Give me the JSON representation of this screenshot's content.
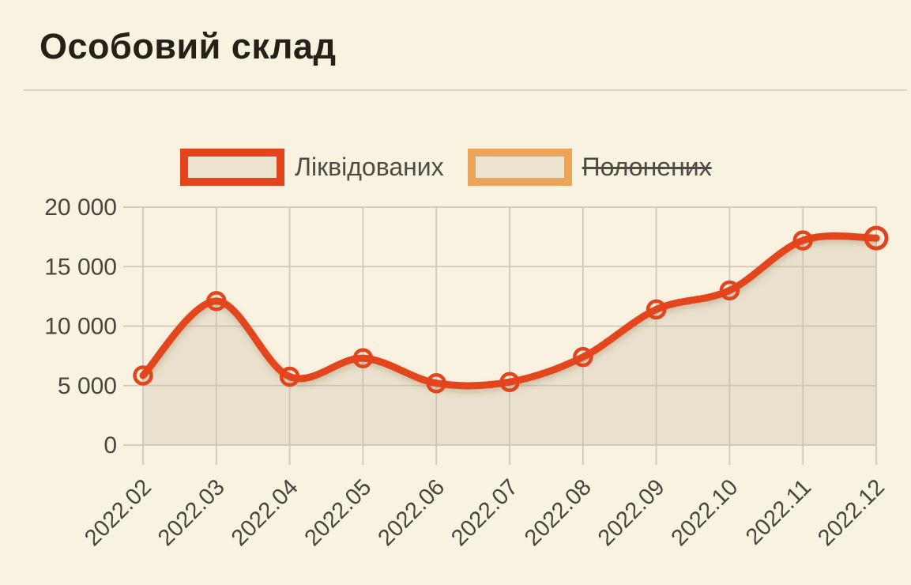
{
  "header": {
    "title": "Особовий склад"
  },
  "legend": {
    "items": [
      {
        "label": "Ліквідованих",
        "color": "#e3441c",
        "active": true
      },
      {
        "label": "Полонених",
        "color": "#eaa55a",
        "active": false
      }
    ]
  },
  "colors": {
    "background": "#faf2e1",
    "line": "#e3441c",
    "captured_accent": "#eaa55a",
    "area_fill": "rgba(200,190,165,0.32)",
    "gridline": "#d0c9b8",
    "axis_text": "#49453d",
    "title_text": "#262017",
    "legend_text": "#4e4b44",
    "divider": "#ddd4c1",
    "swatch_fill": "#ece3d1"
  },
  "chart_data": {
    "type": "line",
    "title": "Особовий склад",
    "x": [
      "2022.02",
      "2022.03",
      "2022.04",
      "2022.05",
      "2022.06",
      "2022.07",
      "2022.08",
      "2022.09",
      "2022.10",
      "2022.11",
      "2022.12"
    ],
    "series": [
      {
        "name": "Ліквідованих",
        "color": "#e3441c",
        "visible": true,
        "smooth": true,
        "area": true,
        "values": [
          5850,
          12100,
          5750,
          7300,
          5200,
          5300,
          7400,
          11400,
          13000,
          17200,
          17400
        ]
      },
      {
        "name": "Полонених",
        "color": "#eaa55a",
        "visible": false,
        "values": []
      }
    ],
    "ylim": [
      0,
      20000
    ],
    "yticks": [
      {
        "value": 0,
        "label": "0"
      },
      {
        "value": 5000,
        "label": "5 000"
      },
      {
        "value": 10000,
        "label": "10 000"
      },
      {
        "value": 15000,
        "label": "15 000"
      },
      {
        "value": 20000,
        "label": "20 000"
      }
    ],
    "grid": true,
    "legend_position": "top",
    "x_label_rotation": -45
  }
}
